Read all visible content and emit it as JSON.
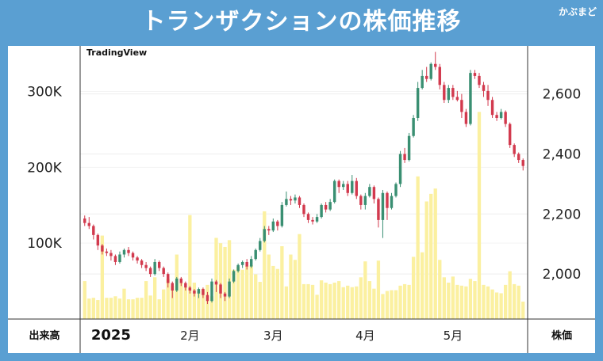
{
  "header": {
    "title": "トランザクションの株価推移",
    "brand": "かぶまど"
  },
  "chart_data": {
    "type": "candlestick",
    "watermark": "TradingView",
    "left_axis": {
      "name": "出来高",
      "ticks": [
        100000,
        200000,
        300000
      ],
      "tick_labels": [
        "100K",
        "200K",
        "300K"
      ],
      "range": [
        0,
        360000
      ]
    },
    "right_axis": {
      "name": "株価",
      "ticks": [
        2000,
        2200,
        2400,
        2600
      ],
      "tick_labels": [
        "2,000",
        "2,200",
        "2,400",
        "2,600"
      ],
      "range": [
        1850,
        2760
      ]
    },
    "x_labels": [
      {
        "label": "2025",
        "index": 6
      },
      {
        "label": "2月",
        "index": 24
      },
      {
        "label": "3月",
        "index": 43
      },
      {
        "label": "4月",
        "index": 64
      },
      {
        "label": "5月",
        "index": 84
      }
    ],
    "colors": {
      "up": "#3a8f72",
      "down": "#d23a4e",
      "volume": "#fbf0a0"
    },
    "candles": [
      [
        2185,
        2170,
        2195,
        2160
      ],
      [
        2170,
        2160,
        2190,
        2150
      ],
      [
        2160,
        2130,
        2165,
        2115
      ],
      [
        2130,
        2095,
        2135,
        2080
      ],
      [
        2095,
        2075,
        2100,
        2065
      ],
      [
        2075,
        2070,
        2085,
        2060
      ],
      [
        2070,
        2060,
        2080,
        2045
      ],
      [
        2060,
        2040,
        2065,
        2030
      ],
      [
        2040,
        2065,
        2075,
        2035
      ],
      [
        2065,
        2080,
        2085,
        2055
      ],
      [
        2080,
        2070,
        2090,
        2060
      ],
      [
        2070,
        2055,
        2075,
        2045
      ],
      [
        2055,
        2045,
        2060,
        2035
      ],
      [
        2045,
        2030,
        2050,
        2020
      ],
      [
        2030,
        2020,
        2040,
        2010
      ],
      [
        2020,
        2000,
        2025,
        1990
      ],
      [
        2000,
        2040,
        2050,
        1995
      ],
      [
        2040,
        2020,
        2045,
        2010
      ],
      [
        2020,
        2000,
        2025,
        1990
      ],
      [
        2000,
        1970,
        2005,
        1955
      ],
      [
        1970,
        1945,
        1975,
        1920
      ],
      [
        1945,
        1985,
        1990,
        1940
      ],
      [
        1985,
        1970,
        1990,
        1960
      ],
      [
        1970,
        1955,
        1975,
        1945
      ],
      [
        1955,
        1945,
        1960,
        1935
      ],
      [
        1945,
        1935,
        1950,
        1925
      ],
      [
        1935,
        1950,
        1955,
        1920
      ],
      [
        1950,
        1930,
        1955,
        1920
      ],
      [
        1930,
        1910,
        1940,
        1900
      ],
      [
        1910,
        1975,
        1985,
        1905
      ],
      [
        1975,
        1965,
        1980,
        1940
      ],
      [
        1965,
        1935,
        1970,
        1920
      ],
      [
        1935,
        1925,
        1940,
        1910
      ],
      [
        1925,
        1975,
        1985,
        1920
      ],
      [
        1975,
        2010,
        2015,
        1970
      ],
      [
        2010,
        2030,
        2035,
        2005
      ],
      [
        2030,
        2040,
        2045,
        2020
      ],
      [
        2040,
        2025,
        2050,
        2015
      ],
      [
        2025,
        2050,
        2060,
        2020
      ],
      [
        2050,
        2080,
        2085,
        2045
      ],
      [
        2080,
        2110,
        2120,
        2075
      ],
      [
        2110,
        2150,
        2160,
        2105
      ],
      [
        2150,
        2145,
        2160,
        2130
      ],
      [
        2145,
        2175,
        2185,
        2140
      ],
      [
        2175,
        2160,
        2180,
        2145
      ],
      [
        2160,
        2230,
        2240,
        2155
      ],
      [
        2230,
        2250,
        2275,
        2225
      ],
      [
        2250,
        2245,
        2260,
        2230
      ],
      [
        2245,
        2255,
        2265,
        2235
      ],
      [
        2255,
        2230,
        2260,
        2220
      ],
      [
        2230,
        2200,
        2235,
        2190
      ],
      [
        2200,
        2180,
        2205,
        2170
      ],
      [
        2180,
        2175,
        2190,
        2165
      ],
      [
        2175,
        2190,
        2200,
        2170
      ],
      [
        2190,
        2230,
        2235,
        2185
      ],
      [
        2230,
        2215,
        2240,
        2205
      ],
      [
        2215,
        2240,
        2250,
        2210
      ],
      [
        2240,
        2310,
        2315,
        2235
      ],
      [
        2310,
        2290,
        2315,
        2270
      ],
      [
        2290,
        2300,
        2310,
        2280
      ],
      [
        2300,
        2270,
        2310,
        2260
      ],
      [
        2270,
        2310,
        2330,
        2265
      ],
      [
        2310,
        2260,
        2320,
        2250
      ],
      [
        2260,
        2230,
        2265,
        2215
      ],
      [
        2230,
        2260,
        2270,
        2215
      ],
      [
        2260,
        2290,
        2300,
        2255
      ],
      [
        2290,
        2250,
        2295,
        2235
      ],
      [
        2250,
        2180,
        2255,
        2155
      ],
      [
        2180,
        2270,
        2280,
        2120
      ],
      [
        2270,
        2220,
        2275,
        2180
      ],
      [
        2220,
        2260,
        2270,
        2215
      ],
      [
        2260,
        2300,
        2305,
        2255
      ],
      [
        2300,
        2400,
        2410,
        2290
      ],
      [
        2400,
        2380,
        2420,
        2370
      ],
      [
        2380,
        2460,
        2470,
        2375
      ],
      [
        2460,
        2520,
        2530,
        2455
      ],
      [
        2520,
        2620,
        2640,
        2510
      ],
      [
        2620,
        2660,
        2680,
        2615
      ],
      [
        2660,
        2650,
        2690,
        2640
      ],
      [
        2650,
        2700,
        2705,
        2645
      ],
      [
        2700,
        2690,
        2740,
        2680
      ],
      [
        2690,
        2630,
        2700,
        2615
      ],
      [
        2630,
        2580,
        2640,
        2570
      ],
      [
        2580,
        2620,
        2630,
        2570
      ],
      [
        2620,
        2590,
        2630,
        2580
      ],
      [
        2590,
        2580,
        2610,
        2575
      ],
      [
        2580,
        2540,
        2600,
        2520
      ],
      [
        2540,
        2500,
        2550,
        2490
      ],
      [
        2500,
        2670,
        2680,
        2495
      ],
      [
        2670,
        2660,
        2680,
        2650
      ],
      [
        2660,
        2630,
        2670,
        2620
      ],
      [
        2630,
        2610,
        2640,
        2590
      ],
      [
        2610,
        2580,
        2630,
        2560
      ],
      [
        2580,
        2530,
        2590,
        2520
      ],
      [
        2530,
        2520,
        2540,
        2510
      ],
      [
        2520,
        2540,
        2550,
        2515
      ],
      [
        2540,
        2500,
        2545,
        2490
      ],
      [
        2500,
        2430,
        2505,
        2420
      ],
      [
        2430,
        2400,
        2435,
        2390
      ],
      [
        2400,
        2380,
        2405,
        2370
      ],
      [
        2380,
        2360,
        2385,
        2345
      ]
    ],
    "volume": [
      50000,
      27000,
      28000,
      25000,
      110000,
      28000,
      28000,
      30000,
      27000,
      40000,
      26000,
      26000,
      28000,
      28000,
      50000,
      31000,
      55000,
      26000,
      39000,
      53000,
      44000,
      85000,
      48000,
      42000,
      137000,
      48000,
      37000,
      40000,
      45000,
      30000,
      107000,
      100000,
      95000,
      104000,
      65000,
      69000,
      65000,
      70000,
      71000,
      59000,
      49000,
      142000,
      85000,
      70000,
      66000,
      96000,
      43000,
      85000,
      78000,
      112000,
      46000,
      46000,
      45000,
      32000,
      51000,
      48000,
      46000,
      48000,
      50000,
      42000,
      44000,
      42000,
      43000,
      55000,
      76000,
      50000,
      40000,
      77000,
      33000,
      37000,
      38000,
      38000,
      44000,
      46000,
      45000,
      82000,
      188000,
      88000,
      155000,
      165000,
      172000,
      78000,
      55000,
      48000,
      56000,
      45000,
      44000,
      43000,
      53000,
      50000,
      273000,
      45000,
      43000,
      39000,
      35000,
      34000,
      45000,
      63000,
      46000,
      44000,
      23000
    ]
  }
}
